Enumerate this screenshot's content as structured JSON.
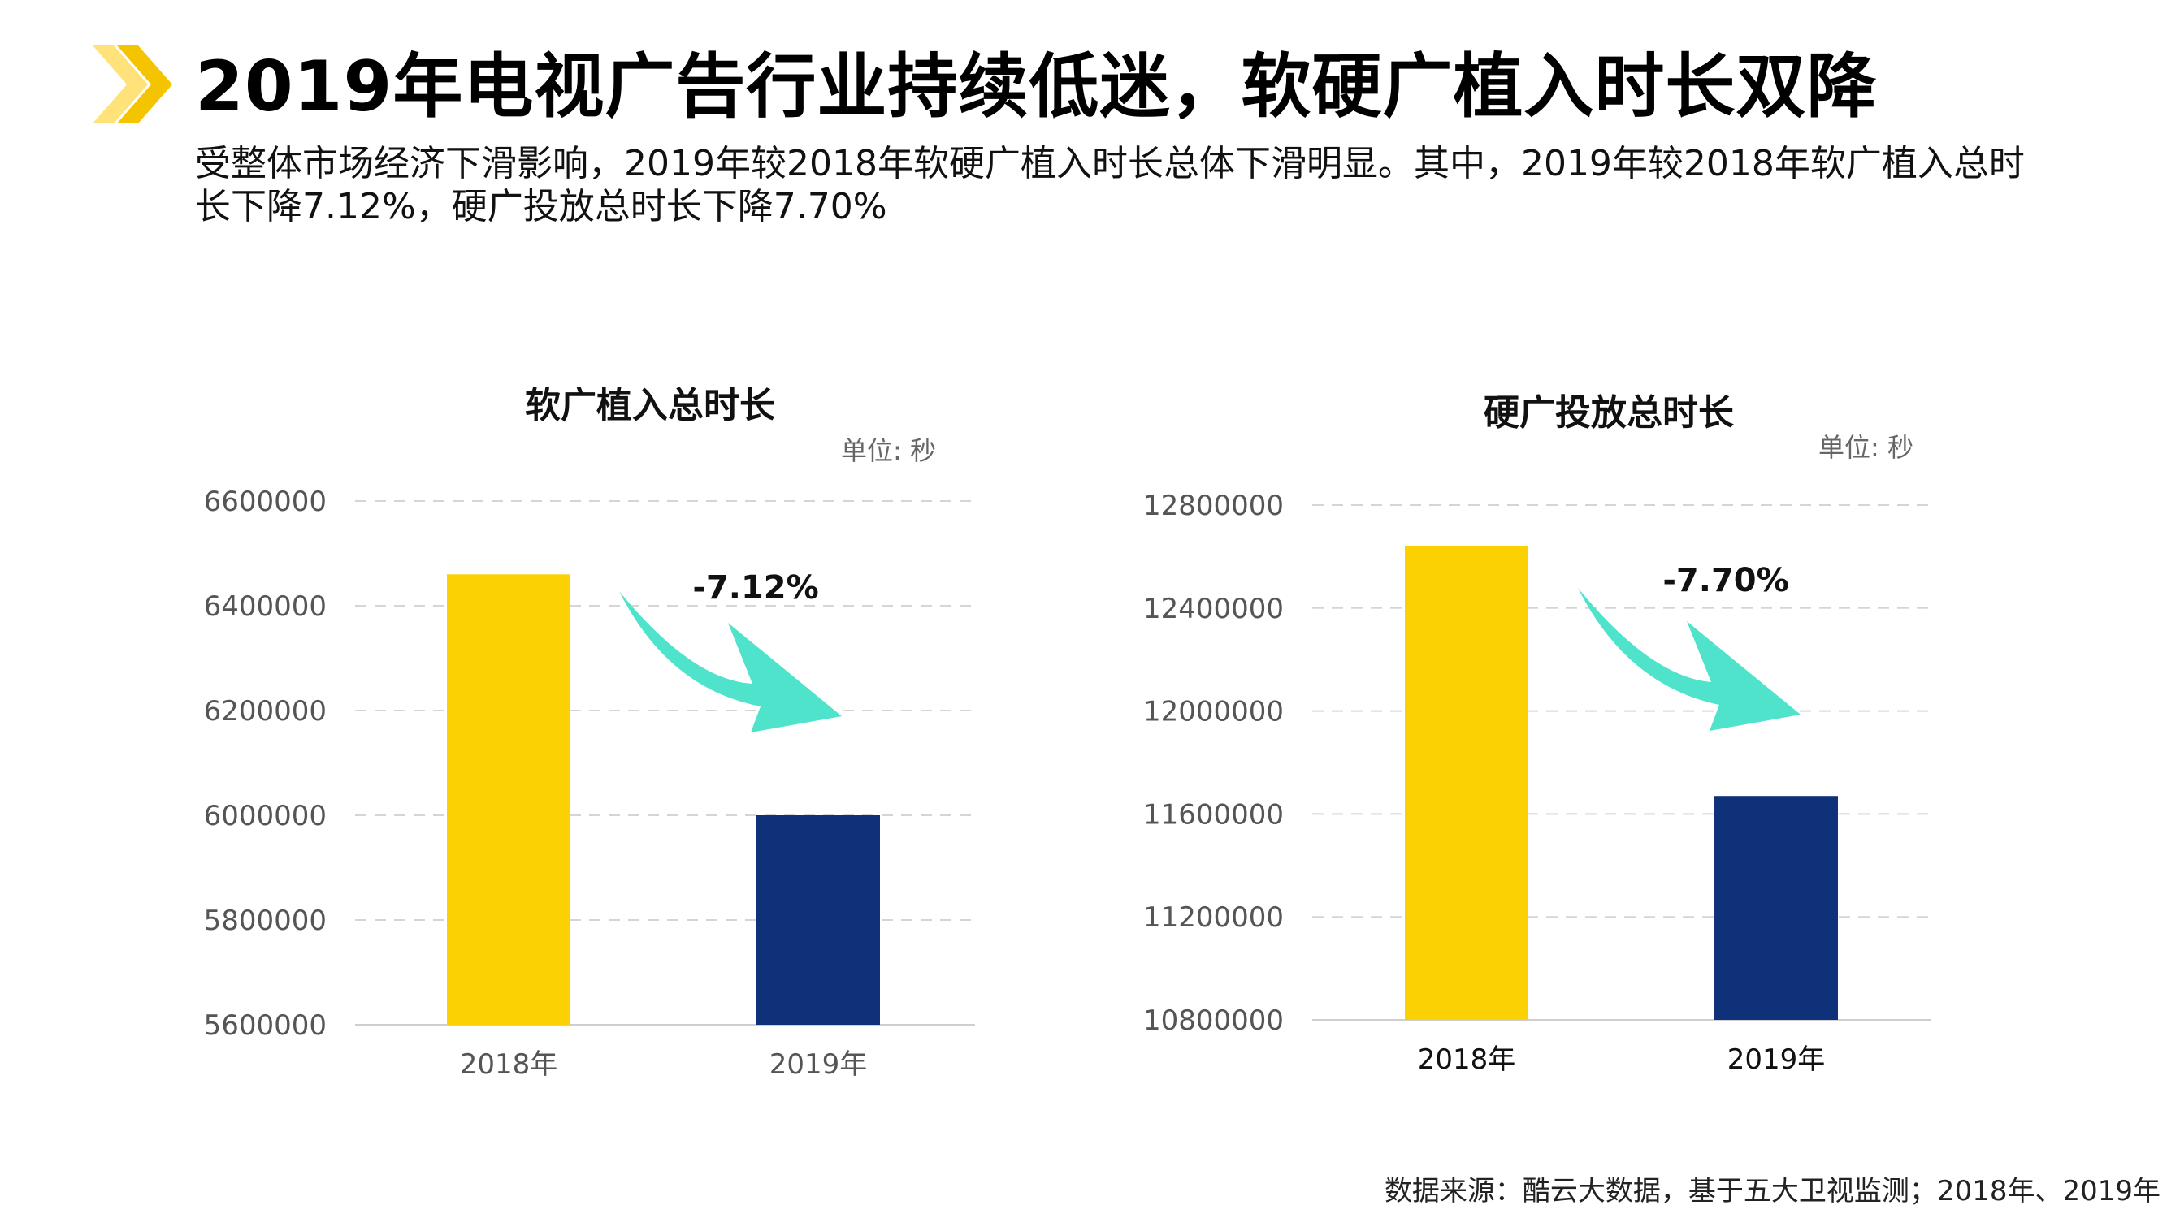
{
  "header": {
    "title": "2019年电视广告行业持续低迷，软硬广植入时长双降",
    "subtitle": "受整体市场经济下滑影响，2019年较2018年软硬广植入时长总体下滑明显。其中，2019年较2018年软广植入总时长下降7.12%，硬广投放总时长下降7.70%",
    "logo_icon": "double-chevron-right-icon"
  },
  "footer": {
    "source": "数据来源：酷云大数据，基于五大卫视监测；2018年、2019年"
  },
  "colors": {
    "bar_2018": "#FBD103",
    "bar_2019": "#0E317A",
    "arrow": "#4FE3CB",
    "logo_front": "#F5C400",
    "logo_back": "#FFE27A",
    "grid": "#d5d5d5",
    "axis_text": "#555555"
  },
  "chart_data": [
    {
      "type": "bar",
      "title": "软广植入总时长",
      "unit_label": "单位: 秒",
      "categories": [
        "2018年",
        "2019年"
      ],
      "values": [
        6460000,
        6000000
      ],
      "ylim": [
        5600000,
        6600000
      ],
      "yticks": [
        5600000,
        5800000,
        6000000,
        6200000,
        6400000,
        6600000
      ],
      "change_label": "-7.12%",
      "grid": true,
      "xlabel": "",
      "ylabel": ""
    },
    {
      "type": "bar",
      "title": "硬广投放总时长",
      "unit_label": "单位: 秒",
      "categories": [
        "2018年",
        "2019年"
      ],
      "values": [
        12640000,
        11670000
      ],
      "ylim": [
        10800000,
        12800000
      ],
      "yticks": [
        10800000,
        11200000,
        11600000,
        12000000,
        12400000,
        12800000
      ],
      "change_label": "-7.70%",
      "grid": true,
      "xlabel": "",
      "ylabel": ""
    }
  ]
}
